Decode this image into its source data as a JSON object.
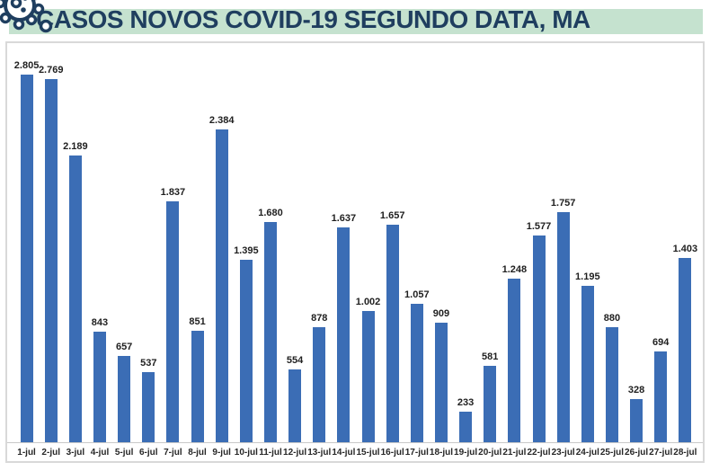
{
  "header": {
    "title": "CASOS NOVOS COVID-19 SEGUNDO DATA, MA",
    "icon": "virus-icon"
  },
  "colors": {
    "band_green": "#c5e2cf",
    "title_navy": "#1f3e5f",
    "bar_blue": "#3b6db5",
    "chart_border": "#d9d9d9",
    "axis_line": "#c9c9c9",
    "value_label": "#1f1f1f",
    "axis_label": "#262626"
  },
  "chart_data": {
    "type": "bar",
    "title": "CASOS NOVOS COVID-19 SEGUNDO DATA, MA",
    "xlabel": "",
    "ylabel": "",
    "ylim": [
      0,
      2805
    ],
    "grid": false,
    "legend": false,
    "value_labels_shown": true,
    "value_label_format": "pt-BR (dot as thousands separator)",
    "categories": [
      "1-jul",
      "2-jul",
      "3-jul",
      "4-jul",
      "5-jul",
      "6-jul",
      "7-jul",
      "8-jul",
      "9-jul",
      "10-jul",
      "11-jul",
      "12-jul",
      "13-jul",
      "14-jul",
      "15-jul",
      "16-jul",
      "17-jul",
      "18-jul",
      "19-jul",
      "20-jul",
      "21-jul",
      "22-jul",
      "23-jul",
      "24-jul",
      "25-jul",
      "26-jul",
      "27-jul",
      "28-jul"
    ],
    "values": [
      2805,
      2769,
      2189,
      843,
      657,
      537,
      1837,
      851,
      2384,
      1395,
      1680,
      554,
      878,
      1637,
      1002,
      1657,
      1057,
      909,
      233,
      581,
      1248,
      1577,
      1757,
      1195,
      880,
      328,
      694,
      1403
    ],
    "value_labels": [
      "2.805",
      "2.769",
      "2.189",
      "843",
      "657",
      "537",
      "1.837",
      "851",
      "2.384",
      "1.395",
      "1.680",
      "554",
      "878",
      "1.637",
      "1.002",
      "1.657",
      "1.057",
      "909",
      "233",
      "581",
      "1.248",
      "1.577",
      "1.757",
      "1.195",
      "880",
      "328",
      "694",
      "1.403"
    ]
  }
}
